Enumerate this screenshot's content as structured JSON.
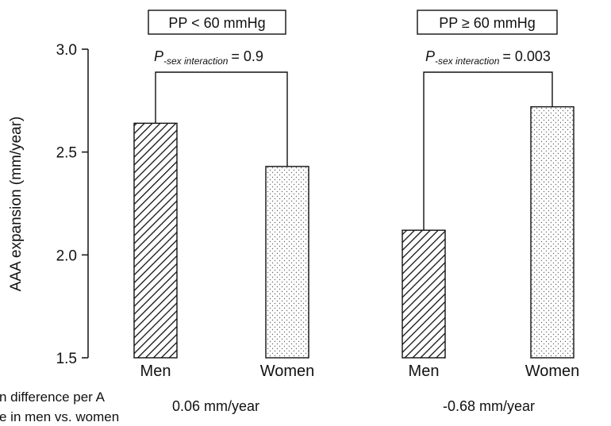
{
  "chart_data": {
    "type": "bar",
    "ylabel": "AAA expansion (mm/year)",
    "ylim": [
      1.5,
      3.0
    ],
    "yticks": [
      "1.5",
      "2.0",
      "2.5",
      "3.0"
    ],
    "grid": false,
    "groups": [
      {
        "label": "PP < 60 mmHg",
        "p_label": "P",
        "p_subscript": "-sex interaction",
        "p_value": "= 0.9",
        "difference": "0.06 mm/year",
        "bars": [
          {
            "category": "Men",
            "value": 2.64,
            "pattern": "diagonal-hatch"
          },
          {
            "category": "Women",
            "value": 2.43,
            "pattern": "dots"
          }
        ]
      },
      {
        "label": "PP ≥ 60 mmHg",
        "p_label": "P",
        "p_subscript": "-sex interaction",
        "p_value": "= 0.003",
        "difference": "-0.68 mm/year",
        "bars": [
          {
            "category": "Men",
            "value": 2.12,
            "pattern": "diagonal-hatch"
          },
          {
            "category": "Women",
            "value": 2.72,
            "pattern": "dots"
          }
        ]
      }
    ],
    "row_label_lines": [
      "n difference per A",
      "e in men vs. women"
    ]
  }
}
